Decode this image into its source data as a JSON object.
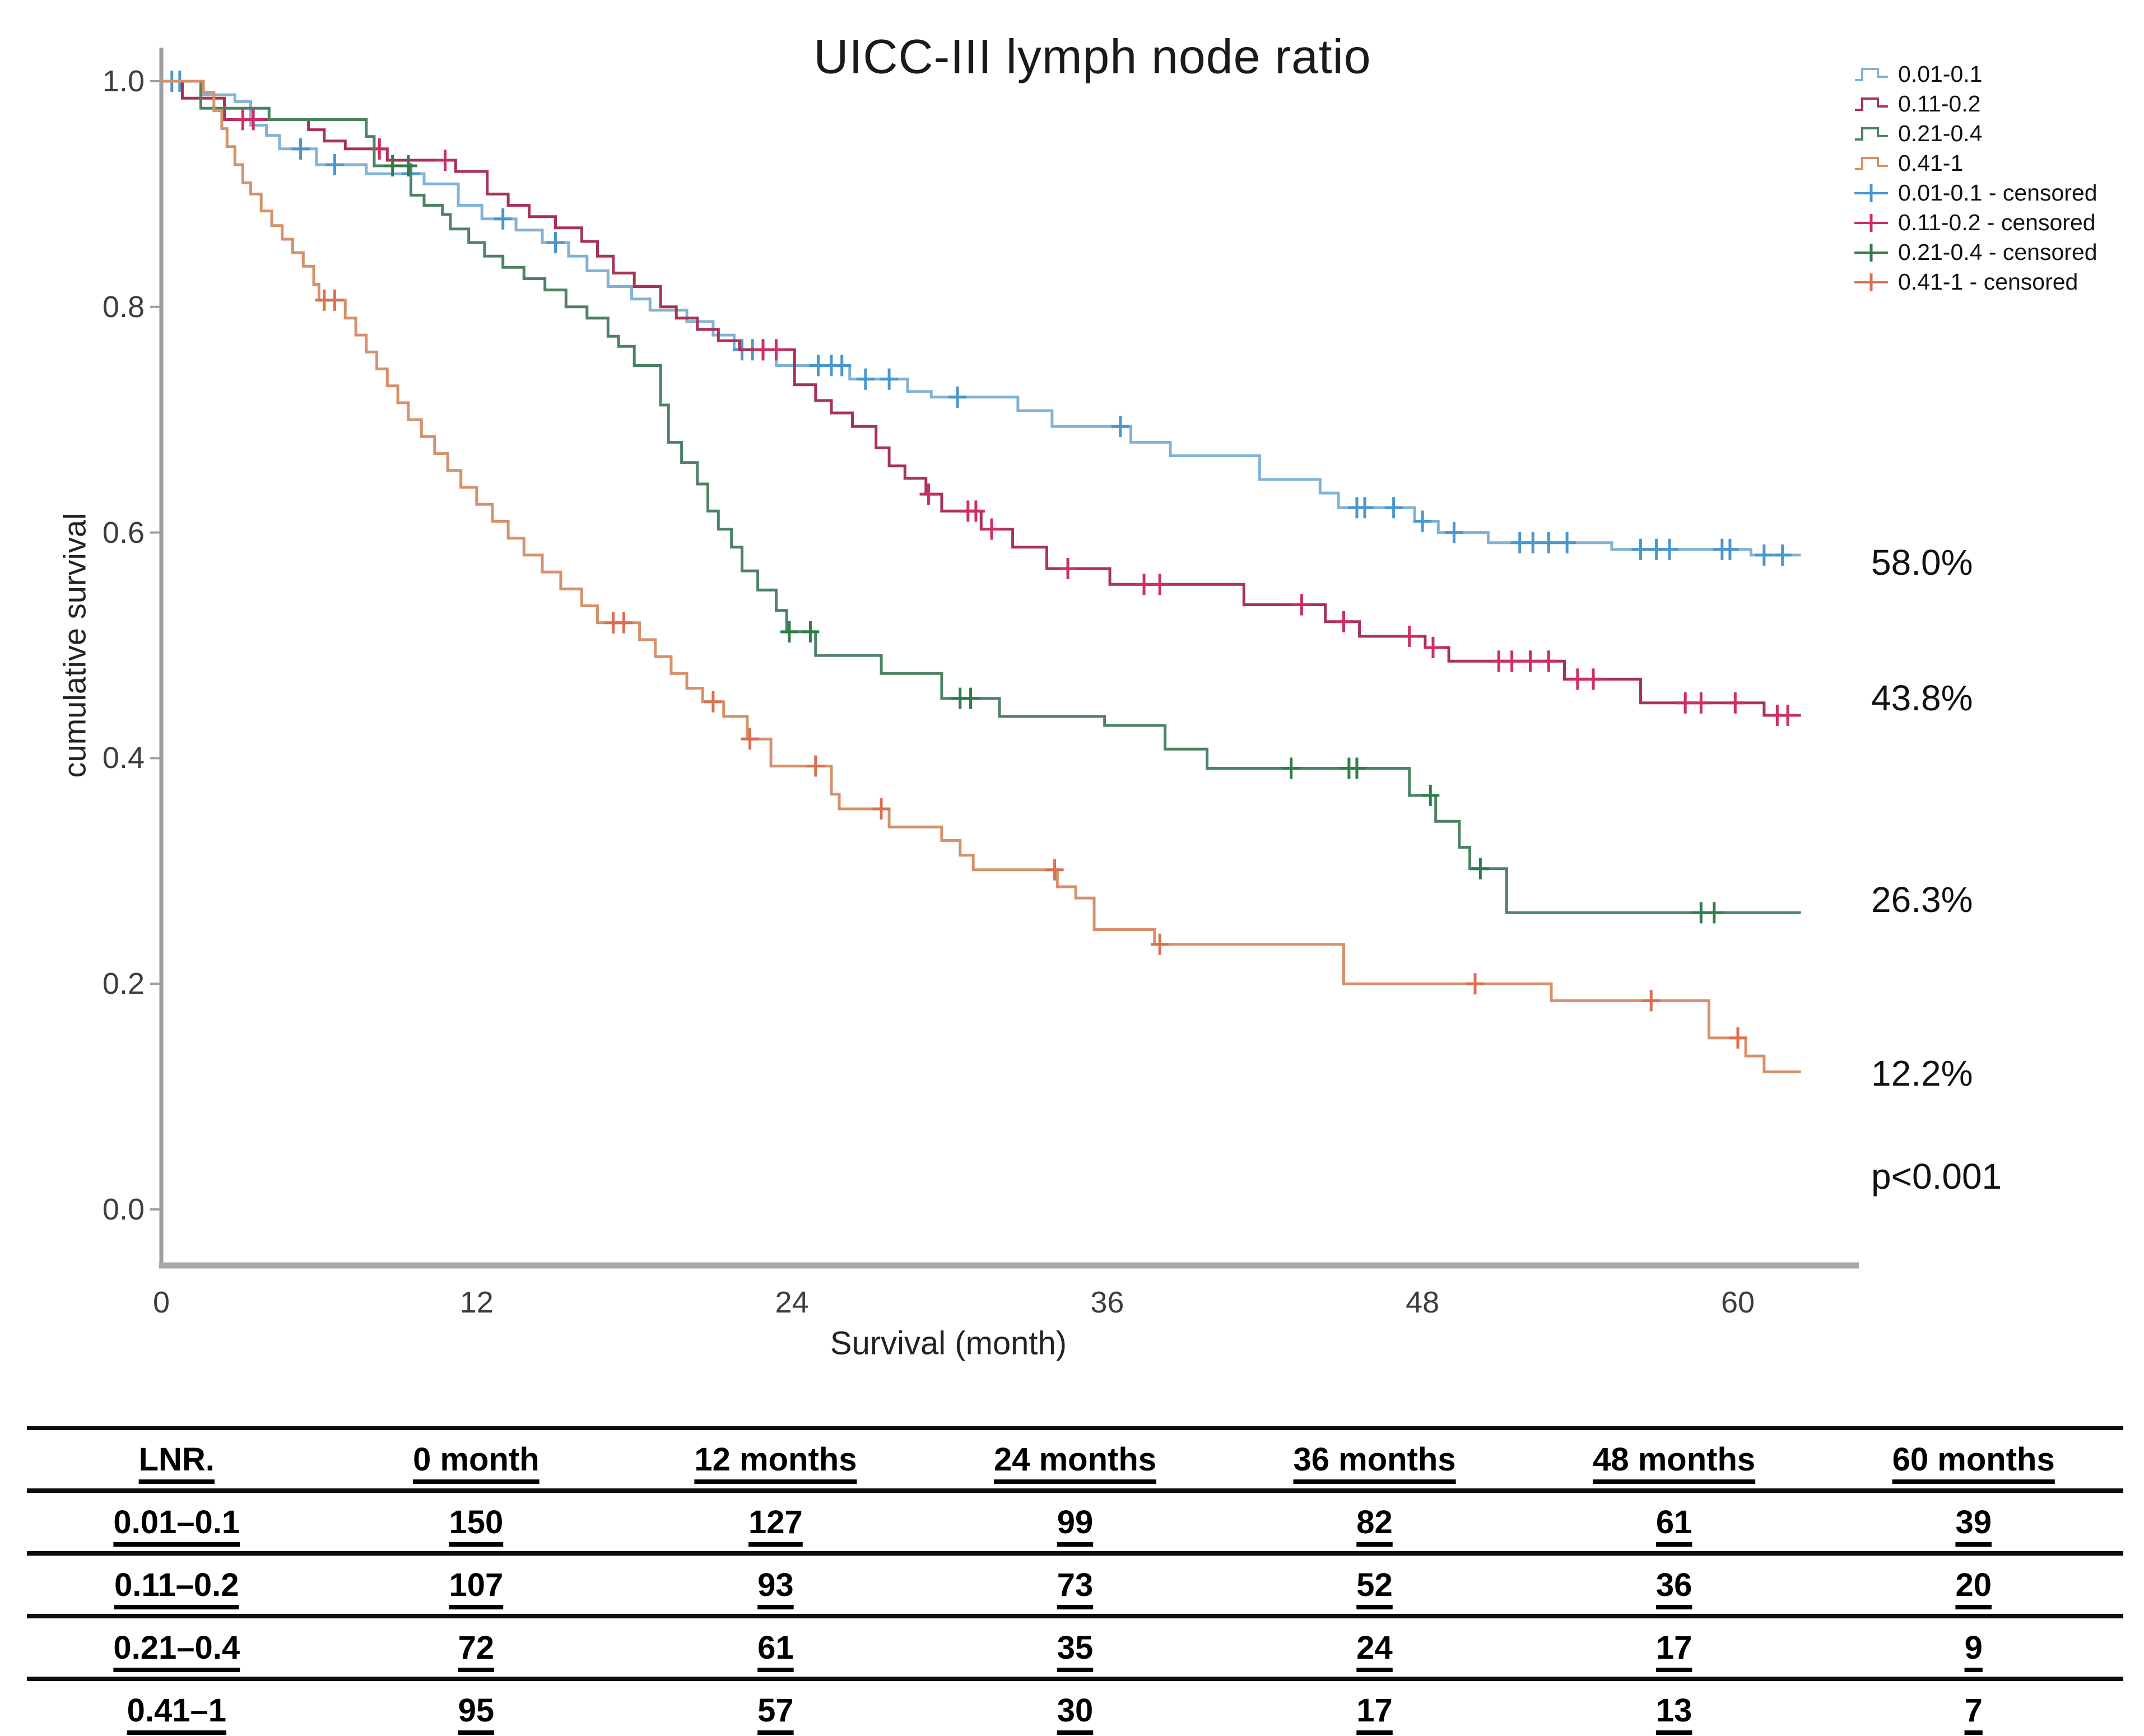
{
  "figure": {
    "title": "UICC-III lymph node ratio",
    "xlabel": "Survival (month)",
    "ylabel": "cumulative survival"
  },
  "legend": {
    "items": [
      {
        "label": "0.01-0.1",
        "series": 0,
        "type": "line"
      },
      {
        "label": "0.11-0.2",
        "series": 1,
        "type": "line"
      },
      {
        "label": "0.21-0.4",
        "series": 2,
        "type": "line"
      },
      {
        "label": "0.41-1",
        "series": 3,
        "type": "line"
      },
      {
        "label": "0.01-0.1 - censored",
        "series": 0,
        "type": "censored"
      },
      {
        "label": "0.11-0.2 - censored",
        "series": 1,
        "type": "censored"
      },
      {
        "label": "0.21-0.4 - censored",
        "series": 2,
        "type": "censored"
      },
      {
        "label": "0.41-1 - censored",
        "series": 3,
        "type": "censored"
      }
    ]
  },
  "chart_data": {
    "type": "line",
    "subtype": "kaplan-meier-step",
    "title": "UICC-III lymph node ratio",
    "xlabel": "Survival (month)",
    "ylabel": "cumulative survival",
    "x_ticks": [
      0,
      12,
      24,
      36,
      48,
      60
    ],
    "y_ticks": [
      1.0,
      0.8,
      0.6,
      0.4,
      0.2,
      0.0
    ],
    "xlim": [
      0,
      62.7
    ],
    "ylim": [
      0,
      1.0
    ],
    "grid": false,
    "legend_position": "top-right",
    "p_value": "p<0.001",
    "series": [
      {
        "name": "0.01-0.1",
        "color": "#82b2d6",
        "censor_color": "#4a96cf",
        "end_label": "58.0%",
        "end_value": 0.58,
        "points": [
          [
            0,
            1
          ],
          [
            1.5,
            0.988
          ],
          [
            2.8,
            0.982
          ],
          [
            3.4,
            0.961
          ],
          [
            4,
            0.952
          ],
          [
            4.5,
            0.94
          ],
          [
            5.9,
            0.926
          ],
          [
            7.8,
            0.918
          ],
          [
            10,
            0.909
          ],
          [
            11.3,
            0.89
          ],
          [
            12.2,
            0.878
          ],
          [
            13.5,
            0.868
          ],
          [
            14.5,
            0.857
          ],
          [
            15.5,
            0.845
          ],
          [
            16.2,
            0.832
          ],
          [
            17,
            0.818
          ],
          [
            17.9,
            0.807
          ],
          [
            18.6,
            0.797
          ],
          [
            20,
            0.787
          ],
          [
            21,
            0.775
          ],
          [
            21.8,
            0.762
          ],
          [
            23.4,
            0.748
          ],
          [
            26.2,
            0.736
          ],
          [
            28.4,
            0.725
          ],
          [
            29.3,
            0.72
          ],
          [
            32.6,
            0.708
          ],
          [
            33.9,
            0.694
          ],
          [
            36.9,
            0.68
          ],
          [
            38.4,
            0.668
          ],
          [
            41.8,
            0.647
          ],
          [
            44.1,
            0.635
          ],
          [
            44.8,
            0.622
          ],
          [
            47.7,
            0.61
          ],
          [
            48.6,
            0.6
          ],
          [
            50.5,
            0.591
          ],
          [
            55.2,
            0.585
          ],
          [
            60.5,
            0.58
          ],
          [
            62.4,
            0.58
          ]
        ],
        "censored_months": [
          0.4,
          0.7,
          5.3,
          6.6,
          9.5,
          13,
          15,
          22.1,
          22.5,
          22.9,
          25,
          25.5,
          25.9,
          26.8,
          27.7,
          30.3,
          36.5,
          45.5,
          45.8,
          46.9,
          48,
          49.2,
          51.7,
          52.2,
          52.8,
          53.5,
          56.3,
          56.9,
          57.4,
          59.4,
          59.7,
          61,
          61.7
        ]
      },
      {
        "name": "0.11-0.2",
        "color": "#a93355",
        "censor_color": "#cc2f60",
        "end_label": "43.8%",
        "end_value": 0.438,
        "points": [
          [
            0,
            1
          ],
          [
            0.8,
            0.985
          ],
          [
            2.4,
            0.966
          ],
          [
            5.6,
            0.957
          ],
          [
            6.2,
            0.947
          ],
          [
            7,
            0.94
          ],
          [
            8.6,
            0.93
          ],
          [
            11.2,
            0.92
          ],
          [
            12.4,
            0.9
          ],
          [
            13.2,
            0.89
          ],
          [
            14,
            0.88
          ],
          [
            15,
            0.87
          ],
          [
            16,
            0.858
          ],
          [
            16.6,
            0.845
          ],
          [
            17.2,
            0.83
          ],
          [
            18,
            0.818
          ],
          [
            19,
            0.8
          ],
          [
            19.6,
            0.79
          ],
          [
            20.4,
            0.78
          ],
          [
            21.2,
            0.77
          ],
          [
            22,
            0.762
          ],
          [
            24.1,
            0.731
          ],
          [
            24.9,
            0.717
          ],
          [
            25.5,
            0.706
          ],
          [
            26.3,
            0.694
          ],
          [
            27.2,
            0.675
          ],
          [
            27.7,
            0.659
          ],
          [
            28.3,
            0.648
          ],
          [
            29.1,
            0.634
          ],
          [
            29.7,
            0.619
          ],
          [
            31.2,
            0.603
          ],
          [
            32.4,
            0.587
          ],
          [
            33.7,
            0.568
          ],
          [
            36.1,
            0.554
          ],
          [
            41.2,
            0.536
          ],
          [
            44.3,
            0.521
          ],
          [
            45.6,
            0.508
          ],
          [
            48.1,
            0.498
          ],
          [
            49,
            0.486
          ],
          [
            53.4,
            0.47
          ],
          [
            56.3,
            0.449
          ],
          [
            61,
            0.438
          ],
          [
            62.4,
            0.438
          ]
        ],
        "censored_months": [
          3.1,
          3.5,
          8.3,
          10.8,
          22.9,
          23.4,
          29.2,
          30.7,
          31,
          31.6,
          34.5,
          37.4,
          38,
          43.4,
          45,
          47.5,
          48.4,
          50.9,
          51.4,
          52.1,
          52.8,
          53.9,
          54.5,
          58,
          58.6,
          59.9,
          61.5,
          61.9
        ]
      },
      {
        "name": "0.21-0.4",
        "color": "#4c8363",
        "censor_color": "#2f7d4a",
        "end_label": "26.3%",
        "end_value": 0.263,
        "points": [
          [
            0,
            1
          ],
          [
            1.5,
            0.976
          ],
          [
            4.1,
            0.966
          ],
          [
            7.8,
            0.951
          ],
          [
            8.1,
            0.925
          ],
          [
            9.5,
            0.899
          ],
          [
            10,
            0.89
          ],
          [
            10.7,
            0.882
          ],
          [
            11,
            0.869
          ],
          [
            11.7,
            0.857
          ],
          [
            12.3,
            0.845
          ],
          [
            13,
            0.835
          ],
          [
            13.8,
            0.825
          ],
          [
            14.6,
            0.815
          ],
          [
            15.4,
            0.8
          ],
          [
            16.2,
            0.79
          ],
          [
            17,
            0.774
          ],
          [
            17.4,
            0.765
          ],
          [
            18,
            0.748
          ],
          [
            19,
            0.713
          ],
          [
            19.3,
            0.68
          ],
          [
            19.8,
            0.662
          ],
          [
            20.4,
            0.643
          ],
          [
            20.8,
            0.619
          ],
          [
            21.2,
            0.603
          ],
          [
            21.7,
            0.587
          ],
          [
            22.1,
            0.566
          ],
          [
            22.7,
            0.549
          ],
          [
            23.4,
            0.531
          ],
          [
            23.8,
            0.512
          ],
          [
            24.9,
            0.491
          ],
          [
            27.4,
            0.475
          ],
          [
            29.7,
            0.453
          ],
          [
            31.9,
            0.437
          ],
          [
            35.9,
            0.429
          ],
          [
            38.2,
            0.408
          ],
          [
            39.8,
            0.391
          ],
          [
            47.5,
            0.367
          ],
          [
            48.5,
            0.344
          ],
          [
            49.4,
            0.321
          ],
          [
            49.8,
            0.302
          ],
          [
            51.2,
            0.263
          ],
          [
            62.4,
            0.263
          ]
        ],
        "censored_months": [
          8.8,
          9.4,
          23.9,
          24.7,
          30.4,
          30.8,
          43,
          45.2,
          45.5,
          48.3,
          50.2,
          58.6,
          59.1
        ]
      },
      {
        "name": "0.41-1",
        "color": "#d6916b",
        "censor_color": "#d9704f",
        "end_label": "12.2%",
        "end_value": 0.122,
        "points": [
          [
            0,
            1
          ],
          [
            1.6,
            0.99
          ],
          [
            2,
            0.974
          ],
          [
            2.3,
            0.958
          ],
          [
            2.5,
            0.942
          ],
          [
            2.8,
            0.926
          ],
          [
            3.1,
            0.91
          ],
          [
            3.4,
            0.9
          ],
          [
            3.8,
            0.885
          ],
          [
            4.2,
            0.872
          ],
          [
            4.6,
            0.86
          ],
          [
            5,
            0.848
          ],
          [
            5.4,
            0.836
          ],
          [
            5.8,
            0.82
          ],
          [
            6,
            0.806
          ],
          [
            7,
            0.79
          ],
          [
            7.4,
            0.775
          ],
          [
            7.8,
            0.76
          ],
          [
            8.2,
            0.745
          ],
          [
            8.6,
            0.73
          ],
          [
            9,
            0.715
          ],
          [
            9.4,
            0.7
          ],
          [
            9.9,
            0.685
          ],
          [
            10.4,
            0.67
          ],
          [
            10.9,
            0.655
          ],
          [
            11.4,
            0.64
          ],
          [
            12,
            0.625
          ],
          [
            12.6,
            0.61
          ],
          [
            13.2,
            0.595
          ],
          [
            13.8,
            0.58
          ],
          [
            14.5,
            0.565
          ],
          [
            15.2,
            0.55
          ],
          [
            16,
            0.535
          ],
          [
            16.6,
            0.52
          ],
          [
            18.2,
            0.505
          ],
          [
            18.8,
            0.49
          ],
          [
            19.4,
            0.475
          ],
          [
            20,
            0.462
          ],
          [
            20.6,
            0.45
          ],
          [
            21.4,
            0.437
          ],
          [
            22.3,
            0.417
          ],
          [
            23.2,
            0.393
          ],
          [
            25.5,
            0.368
          ],
          [
            25.8,
            0.355
          ],
          [
            27.7,
            0.339
          ],
          [
            29.7,
            0.327
          ],
          [
            30.4,
            0.314
          ],
          [
            30.9,
            0.301
          ],
          [
            34.1,
            0.286
          ],
          [
            34.8,
            0.276
          ],
          [
            35.5,
            0.248
          ],
          [
            37.8,
            0.235
          ],
          [
            45,
            0.2
          ],
          [
            52.9,
            0.185
          ],
          [
            58.9,
            0.152
          ],
          [
            60.3,
            0.136
          ],
          [
            61,
            0.122
          ],
          [
            62.4,
            0.122
          ]
        ],
        "censored_months": [
          6.2,
          6.6,
          17.2,
          17.6,
          21,
          22.4,
          24.9,
          27.4,
          34,
          38,
          50,
          56.7,
          60
        ]
      }
    ],
    "annotations": [
      {
        "text": "58.0%",
        "at_survival": 0.574
      },
      {
        "text": "43.8%",
        "at_survival": 0.454
      },
      {
        "text": "26.3%",
        "at_survival": 0.275
      },
      {
        "text": "12.2%",
        "at_survival": 0.121
      },
      {
        "text": "p<0.001",
        "at_survival": 0.03
      }
    ]
  },
  "risk_table": {
    "headers": [
      "LNR.",
      "0 month",
      "12 months",
      "24 months",
      "36 months",
      "48 months",
      "60 months"
    ],
    "rows": [
      {
        "label": "0.01–0.1",
        "values": [
          "150",
          "127",
          "99",
          "82",
          "61",
          "39"
        ]
      },
      {
        "label": "0.11–0.2",
        "values": [
          "107",
          "93",
          "73",
          "52",
          "36",
          "20"
        ]
      },
      {
        "label": "0.21–0.4",
        "values": [
          "72",
          "61",
          "35",
          "24",
          "17",
          "9"
        ]
      },
      {
        "label": "0.41–1",
        "values": [
          "95",
          "57",
          "30",
          "17",
          "13",
          "7"
        ]
      }
    ]
  }
}
